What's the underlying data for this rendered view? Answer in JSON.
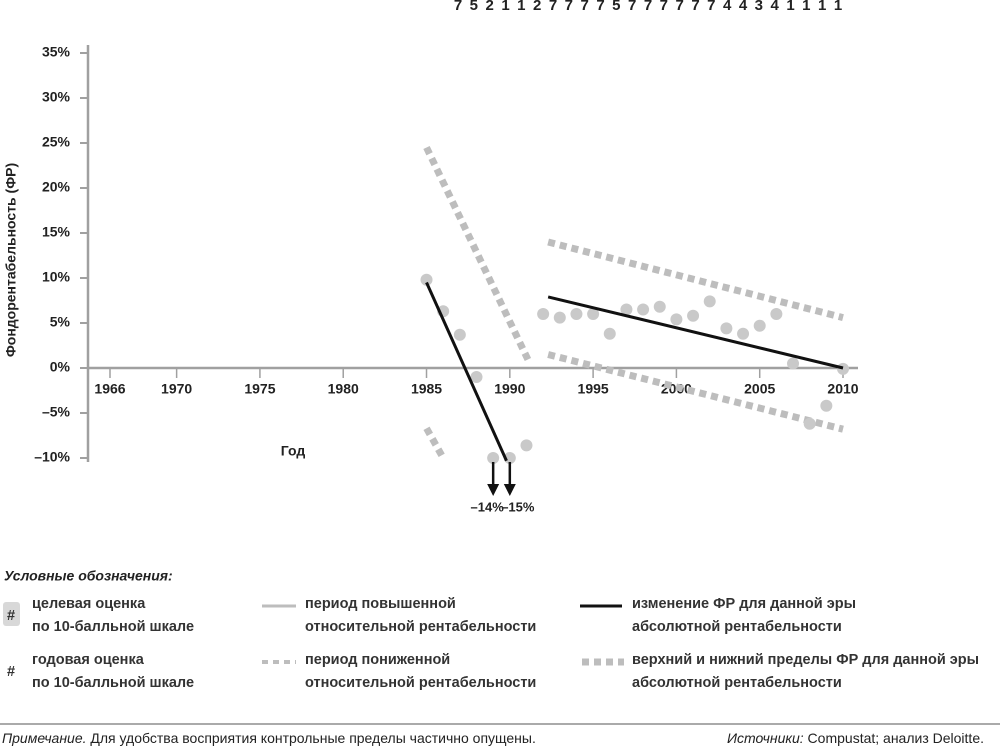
{
  "chart_data": {
    "type": "scatter",
    "ylabel": "Фондорентабельность (ФР)",
    "xlabel": "Год",
    "xlim": [
      1964.68,
      2010.9
    ],
    "ylim": [
      -10,
      35
    ],
    "yticks": [
      {
        "value": 35,
        "label": "35%"
      },
      {
        "value": 30,
        "label": "30%"
      },
      {
        "value": 25,
        "label": "25%"
      },
      {
        "value": 20,
        "label": "20%"
      },
      {
        "value": 15,
        "label": "15%"
      },
      {
        "value": 10,
        "label": "10%"
      },
      {
        "value": 5,
        "label": "5%"
      },
      {
        "value": 0,
        "label": "0%"
      },
      {
        "value": -5,
        "label": "–5%"
      },
      {
        "value": -10,
        "label": "–10%"
      }
    ],
    "xticks": [
      1966,
      1970,
      1975,
      1980,
      1985,
      1990,
      1995,
      2000,
      2005,
      2010
    ],
    "top_scores": [
      7,
      5,
      2,
      1,
      1,
      2,
      7,
      7,
      7,
      7,
      5,
      7,
      7,
      7,
      7,
      7,
      7,
      4,
      4,
      3,
      4,
      1,
      1,
      1,
      1
    ],
    "points": {
      "color": "#c9c9c9",
      "x": [
        1985,
        1986,
        1987,
        1988,
        1989,
        1990,
        1991,
        1992,
        1993,
        1994,
        1995,
        1996,
        1997,
        1998,
        1999,
        2000,
        2001,
        2002,
        2003,
        2004,
        2005,
        2006,
        2007,
        2008,
        2009,
        2010
      ],
      "values": [
        9.8,
        6.3,
        3.7,
        -1,
        -14,
        -15,
        -8.6,
        6,
        5.6,
        6,
        6,
        3.8,
        6.5,
        6.5,
        6.8,
        5.4,
        5.8,
        7.4,
        4.4,
        3.8,
        4.7,
        6,
        0.5,
        -6.2,
        -4.2,
        -0.1
      ],
      "value_labels": [
        null,
        null,
        null,
        null,
        "–14%",
        "–15%",
        null,
        null,
        null,
        null,
        null,
        null,
        null,
        null,
        null,
        null,
        null,
        null,
        null,
        null,
        null,
        null,
        null,
        null,
        null,
        null
      ]
    },
    "trend_lines": [
      {
        "color": "#111111",
        "x": [
          1985,
          1989.8
        ],
        "values": [
          9.5,
          -10.3
        ]
      },
      {
        "color": "#111111",
        "x": [
          1992.3,
          2010
        ],
        "values": [
          7.9,
          0
        ]
      }
    ],
    "limit_lines": [
      {
        "color": "#bdbdbd",
        "x": [
          1985,
          1991.2
        ],
        "values": [
          24.5,
          0.5
        ]
      },
      {
        "color": "#bdbdbd",
        "x": [
          1985,
          1986
        ],
        "values": [
          -6.7,
          -10
        ]
      },
      {
        "color": "#bdbdbd",
        "x": [
          1992.3,
          2010
        ],
        "values": [
          14,
          5.6
        ]
      },
      {
        "color": "#bdbdbd",
        "x": [
          1992.3,
          2010
        ],
        "values": [
          1.5,
          -6.8
        ]
      }
    ],
    "legend_title": "Условные обозначения:",
    "legend": [
      {
        "symbol": "#",
        "lines": [
          "целевая оценка",
          "по 10-балльной шкале"
        ]
      },
      {
        "lines": [
          "период повышенной",
          "относительной рентабельности"
        ]
      },
      {
        "lines": [
          "изменение ФР для данной эры",
          "абсолютной рентабельности"
        ]
      },
      {
        "symbol": "#",
        "lines": [
          "годовая оценка",
          "по 10-балльной шкале"
        ]
      },
      {
        "lines": [
          "период пониженной",
          "относительной рентабельности"
        ]
      },
      {
        "lines": [
          "верхний и нижний пределы ФР для данной эры",
          "абсолютной рентабельности"
        ]
      }
    ],
    "note": {
      "label": "Примечание.",
      "text": " Для удобства восприятия контрольные пределы частично опущены."
    },
    "sources": {
      "label": "Источники:",
      "text": " Compustat; анализ Deloitte."
    }
  }
}
